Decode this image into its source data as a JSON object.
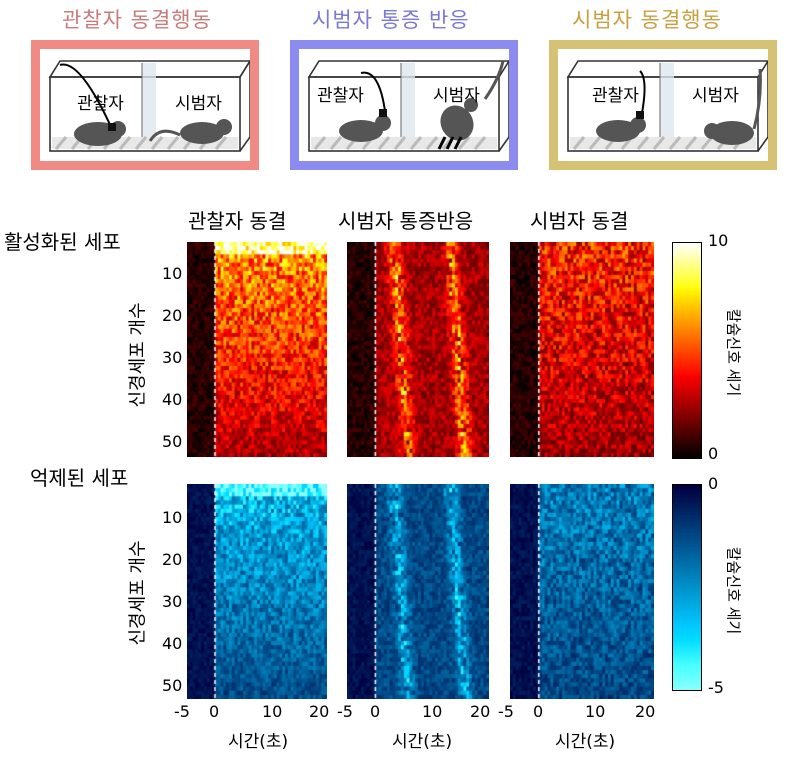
{
  "conditions": [
    {
      "title": "관찰자 동결행동",
      "color": "#c97b7b",
      "border": "#f08a85",
      "label_left": "관찰자",
      "label_right": "시범자"
    },
    {
      "title": "시범자 통증 반응",
      "color": "#7a7ad6",
      "border": "#8c8cf0",
      "label_left": "관찰자",
      "label_right": "시범자"
    },
    {
      "title": "시범자 동결행동",
      "color": "#c9a040",
      "border": "#d6c274",
      "label_left": "관찰자",
      "label_right": "시범자"
    }
  ],
  "chart_data": [
    {
      "type": "heatmap",
      "section": "활성화된 세포",
      "titles": [
        "관찰자 동결",
        "시범자 통증반응",
        "시범자 동결"
      ],
      "ylabel": "신경세포 개수",
      "yticks": [
        10,
        20,
        30,
        40,
        50
      ],
      "ylim": [
        1,
        52
      ],
      "colorbar": {
        "label": "칼슘신호 세기",
        "min": 0,
        "max": 10,
        "tick_labels": [
          "10",
          "0"
        ],
        "colormap": "hot"
      }
    },
    {
      "type": "heatmap",
      "section": "억제된 세포",
      "ylabel": "신경세포 개수",
      "yticks": [
        10,
        20,
        30,
        40,
        50
      ],
      "ylim": [
        1,
        52
      ],
      "xticks": [
        -5,
        0,
        10,
        20
      ],
      "xlim": [
        -5,
        20
      ],
      "xlabel": "시간(초)",
      "colorbar": {
        "label": "칼슘신호 세기",
        "min": -5,
        "max": 0,
        "tick_labels": [
          "0",
          "-5"
        ],
        "colormap": "blue"
      }
    }
  ],
  "ytick_labels": [
    "10",
    "20",
    "30",
    "40",
    "50"
  ],
  "xtick_labels": [
    "-5",
    "0",
    "10",
    "20"
  ],
  "xlabel": "시간(초)"
}
